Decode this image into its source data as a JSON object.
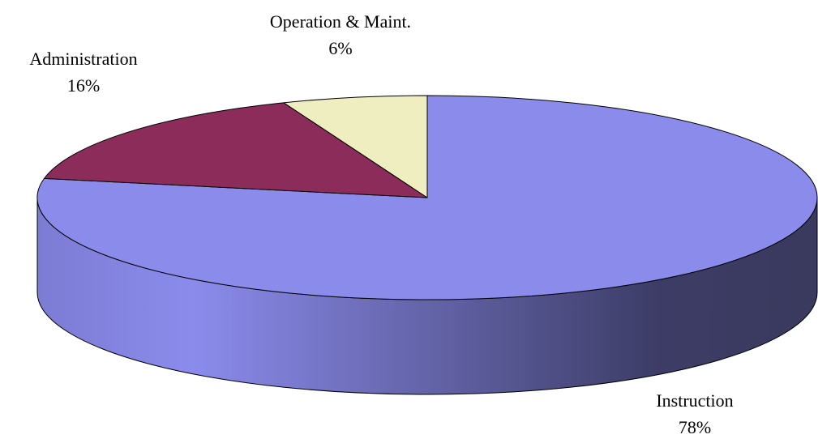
{
  "chart_data": {
    "type": "pie",
    "categories": [
      "Instruction",
      "Administration",
      "Operation & Maint."
    ],
    "values": [
      78,
      16,
      6
    ],
    "value_labels": [
      "78%",
      "16%",
      "6%"
    ],
    "colors": [
      "#8b8bec",
      "#8b2c5a",
      "#eeeec0"
    ]
  }
}
